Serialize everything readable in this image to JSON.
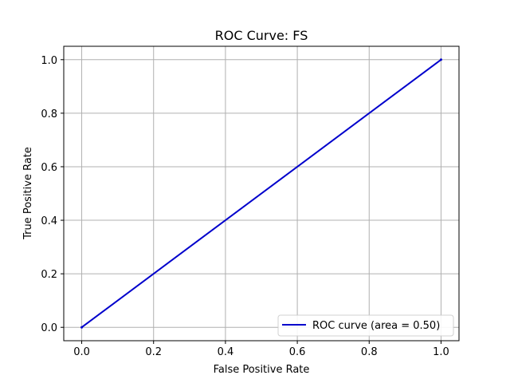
{
  "chart_data": {
    "type": "line",
    "title": "ROC Curve: FS",
    "xlabel": "False Positive Rate",
    "ylabel": "True Positive Rate",
    "xlim": [
      -0.05,
      1.05
    ],
    "ylim": [
      -0.05,
      1.05
    ],
    "xticks": [
      "0.0",
      "0.2",
      "0.4",
      "0.6",
      "0.8",
      "1.0"
    ],
    "yticks": [
      "0.0",
      "0.2",
      "0.4",
      "0.6",
      "0.8",
      "1.0"
    ],
    "grid": true,
    "legend_position": "lower-right",
    "series": [
      {
        "name": "ROC curve (area = 0.50)",
        "color": "#0000cc",
        "x": [
          0.0,
          1.0
        ],
        "y": [
          0.0,
          1.0
        ]
      }
    ]
  }
}
